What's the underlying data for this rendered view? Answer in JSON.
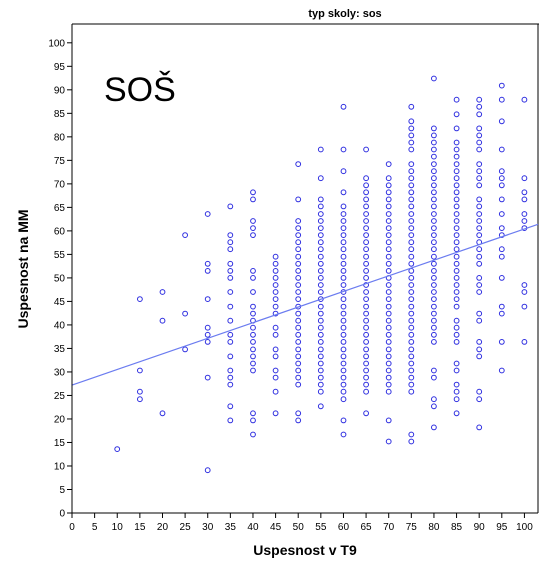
{
  "chart_data": {
    "type": "scatter",
    "panel_title": "typ skoly: sos",
    "annotation": "SOŠ",
    "xlabel": "Uspesnost v T9",
    "ylabel": "Uspesnost na MM",
    "xlim": [
      0,
      103
    ],
    "ylim": [
      0,
      104
    ],
    "x_ticks": [
      0,
      5,
      10,
      15,
      20,
      25,
      30,
      35,
      40,
      45,
      50,
      55,
      60,
      65,
      70,
      75,
      80,
      85,
      90,
      95,
      100
    ],
    "y_ticks": [
      0,
      5,
      10,
      15,
      20,
      25,
      30,
      35,
      40,
      45,
      50,
      55,
      60,
      65,
      70,
      75,
      80,
      85,
      90,
      95,
      100
    ],
    "grid": false,
    "marker_color": "#2f2fe0",
    "fit_line": {
      "x": [
        0,
        103
      ],
      "y": [
        27.2,
        61.4
      ],
      "color": "#6b7cf0"
    },
    "columns": [
      {
        "x": 10,
        "y": [
          13.6
        ]
      },
      {
        "x": 15,
        "y": [
          24.2,
          25.8,
          30.3,
          45.5
        ]
      },
      {
        "x": 20,
        "y": [
          21.2,
          40.9,
          47
        ]
      },
      {
        "x": 25,
        "y": [
          34.8,
          42.4,
          59.1
        ]
      },
      {
        "x": 30,
        "y": [
          9.1,
          28.8,
          36.4,
          37.9,
          39.4,
          45.5,
          51.5,
          53,
          63.6
        ]
      },
      {
        "x": 35,
        "y": [
          19.7,
          22.7,
          27.3,
          28.8,
          30.3,
          33.3,
          36.4,
          37.9,
          40.9,
          43.9,
          47,
          50,
          51.5,
          53,
          56.1,
          57.6,
          59.1,
          65.2
        ]
      },
      {
        "x": 40,
        "y": [
          16.7,
          19.7,
          21.2,
          30.3,
          31.8,
          33.3,
          34.8,
          36.4,
          37.9,
          39.4,
          40.9,
          42.4,
          43.9,
          47,
          50,
          51.5,
          59.1,
          60.6,
          62.1,
          66.7,
          68.2
        ]
      },
      {
        "x": 45,
        "y": [
          21.2,
          25.8,
          28.8,
          30.3,
          33.3,
          34.8,
          37.9,
          39.4,
          42.4,
          43.9,
          45.5,
          47,
          48.5,
          50,
          51.5,
          53,
          54.5
        ]
      },
      {
        "x": 50,
        "y": [
          19.7,
          21.2,
          27.3,
          28.8,
          30.3,
          31.8,
          33.3,
          34.8,
          36.4,
          37.9,
          39.4,
          40.9,
          42.4,
          43.9,
          45.5,
          47,
          48.5,
          50,
          51.5,
          53,
          54.5,
          56.1,
          57.6,
          59.1,
          60.6,
          62.1,
          66.7,
          74.2
        ]
      },
      {
        "x": 55,
        "y": [
          22.7,
          25.8,
          27.3,
          28.8,
          30.3,
          31.8,
          33.3,
          34.8,
          36.4,
          37.9,
          39.4,
          40.9,
          42.4,
          43.9,
          45.5,
          47,
          48.5,
          50,
          51.5,
          53,
          54.5,
          56.1,
          57.6,
          59.1,
          60.6,
          62.1,
          63.6,
          65.2,
          66.7,
          71.2,
          77.3
        ]
      },
      {
        "x": 60,
        "y": [
          16.7,
          19.7,
          24.2,
          25.8,
          27.3,
          28.8,
          30.3,
          31.8,
          33.3,
          34.8,
          36.4,
          37.9,
          39.4,
          40.9,
          42.4,
          43.9,
          45.5,
          47,
          48.5,
          50,
          51.5,
          53,
          54.5,
          56.1,
          57.6,
          59.1,
          60.6,
          62.1,
          63.6,
          65.2,
          68.2,
          72.7,
          77.3,
          86.4
        ]
      },
      {
        "x": 65,
        "y": [
          21.2,
          25.8,
          27.3,
          28.8,
          30.3,
          31.8,
          33.3,
          34.8,
          36.4,
          37.9,
          39.4,
          40.9,
          42.4,
          43.9,
          45.5,
          47,
          48.5,
          50,
          51.5,
          53,
          54.5,
          56.1,
          57.6,
          59.1,
          60.6,
          62.1,
          63.6,
          65.2,
          66.7,
          68.2,
          69.7,
          71.2,
          77.3
        ]
      },
      {
        "x": 70,
        "y": [
          15.2,
          19.7,
          25.8,
          27.3,
          28.8,
          30.3,
          31.8,
          33.3,
          34.8,
          36.4,
          37.9,
          39.4,
          40.9,
          42.4,
          43.9,
          45.5,
          47,
          48.5,
          50,
          51.5,
          53,
          54.5,
          56.1,
          57.6,
          59.1,
          60.6,
          62.1,
          63.6,
          65.2,
          66.7,
          68.2,
          69.7,
          71.2,
          74.2
        ]
      },
      {
        "x": 75,
        "y": [
          15.2,
          16.7,
          25.8,
          27.3,
          28.8,
          30.3,
          31.8,
          33.3,
          34.8,
          36.4,
          37.9,
          39.4,
          40.9,
          42.4,
          43.9,
          45.5,
          47,
          48.5,
          50,
          51.5,
          53,
          54.5,
          56.1,
          57.6,
          59.1,
          60.6,
          62.1,
          63.6,
          65.2,
          66.7,
          68.2,
          69.7,
          71.2,
          72.7,
          74.2,
          77.3,
          78.8,
          80.3,
          81.8,
          83.3,
          86.4
        ]
      },
      {
        "x": 80,
        "y": [
          18.2,
          22.7,
          24.2,
          28.8,
          30.3,
          36.4,
          37.9,
          39.4,
          40.9,
          42.4,
          43.9,
          45.5,
          47,
          48.5,
          50,
          51.5,
          53,
          54.5,
          56.1,
          57.6,
          59.1,
          60.6,
          62.1,
          63.6,
          65.2,
          66.7,
          68.2,
          69.7,
          71.2,
          72.7,
          74.2,
          75.8,
          77.3,
          78.8,
          80.3,
          81.8,
          92.4
        ]
      },
      {
        "x": 85,
        "y": [
          21.2,
          24.2,
          25.8,
          27.3,
          30.3,
          31.8,
          36.4,
          37.9,
          39.4,
          40.9,
          43.9,
          45.5,
          47,
          48.5,
          50,
          51.5,
          53,
          54.5,
          56.1,
          57.6,
          59.1,
          60.6,
          62.1,
          63.6,
          65.2,
          66.7,
          68.2,
          69.7,
          71.2,
          72.7,
          74.2,
          75.8,
          77.3,
          78.8,
          81.8,
          84.8,
          87.9
        ]
      },
      {
        "x": 90,
        "y": [
          18.2,
          24.2,
          25.8,
          33.3,
          34.8,
          36.4,
          40.9,
          42.4,
          47,
          48.5,
          50,
          53,
          54.5,
          56.1,
          57.6,
          59.1,
          60.6,
          62.1,
          63.6,
          65.2,
          66.7,
          69.7,
          71.2,
          72.7,
          74.2,
          77.3,
          78.8,
          80.3,
          81.8,
          84.8,
          86.4,
          87.9
        ]
      },
      {
        "x": 95,
        "y": [
          30.3,
          36.4,
          42.4,
          43.9,
          50,
          54.5,
          56.1,
          59.1,
          60.6,
          63.6,
          66.7,
          69.7,
          71.2,
          72.7,
          77.3,
          83.3,
          87.9,
          90.9
        ]
      },
      {
        "x": 100,
        "y": [
          36.4,
          43.9,
          47,
          48.5,
          60.6,
          62.1,
          63.6,
          66.7,
          68.2,
          71.2,
          87.9
        ]
      }
    ]
  }
}
